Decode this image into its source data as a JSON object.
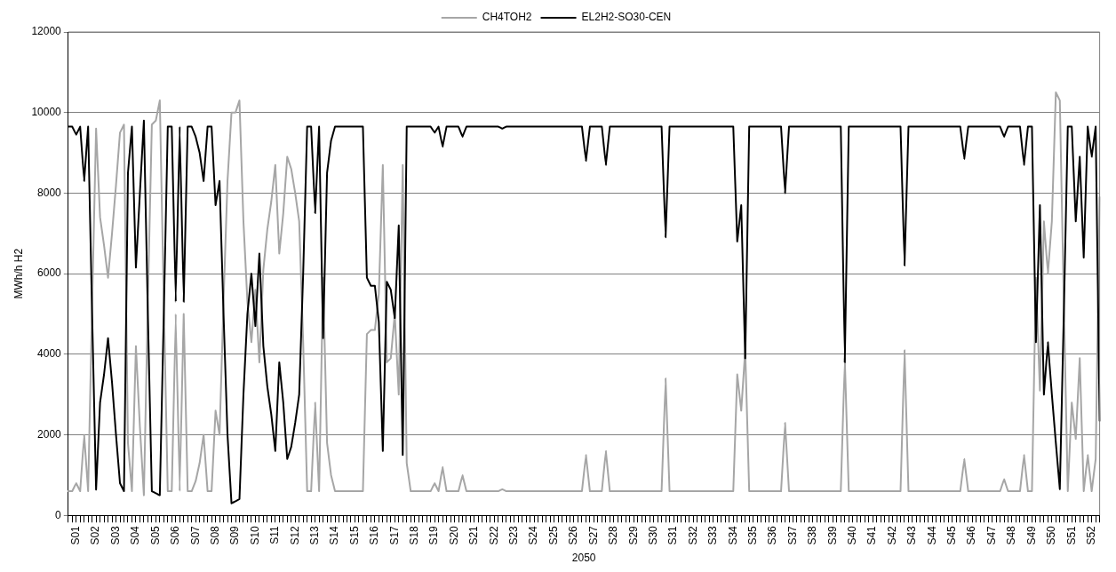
{
  "chart_data": {
    "type": "line",
    "xlabel": "2050",
    "ylabel": "MWh/h H2",
    "legend": "top",
    "grid": "y",
    "ylim": [
      0,
      12000
    ],
    "yticks": [
      0,
      2000,
      4000,
      6000,
      8000,
      10000,
      12000
    ],
    "categories": [
      null,
      null,
      "S01",
      null,
      null,
      null,
      null,
      "S02",
      null,
      null,
      null,
      null,
      "S03",
      null,
      null,
      null,
      null,
      "S04",
      null,
      null,
      null,
      null,
      "S05",
      null,
      null,
      null,
      null,
      "S06",
      null,
      null,
      null,
      null,
      "S07",
      null,
      null,
      null,
      null,
      "S08",
      null,
      null,
      null,
      null,
      "S09",
      null,
      null,
      null,
      null,
      "S10",
      null,
      null,
      null,
      null,
      "S11",
      null,
      null,
      null,
      null,
      "S12",
      null,
      null,
      null,
      null,
      "S13",
      null,
      null,
      null,
      null,
      "S14",
      null,
      null,
      null,
      null,
      "S15",
      null,
      null,
      null,
      null,
      "S16",
      null,
      null,
      null,
      null,
      "S17",
      null,
      null,
      null,
      null,
      "S18",
      null,
      null,
      null,
      null,
      "S19",
      null,
      null,
      null,
      null,
      "S20",
      null,
      null,
      null,
      null,
      "S21",
      null,
      null,
      null,
      null,
      "S22",
      null,
      null,
      null,
      null,
      "S23",
      null,
      null,
      null,
      null,
      "S24",
      null,
      null,
      null,
      null,
      "S25",
      null,
      null,
      null,
      null,
      "S26",
      null,
      null,
      null,
      null,
      "S27",
      null,
      null,
      null,
      null,
      "S28",
      null,
      null,
      null,
      null,
      "S29",
      null,
      null,
      null,
      null,
      "S30",
      null,
      null,
      null,
      null,
      "S31",
      null,
      null,
      null,
      null,
      "S32",
      null,
      null,
      null,
      null,
      "S33",
      null,
      null,
      null,
      null,
      "S34",
      null,
      null,
      null,
      null,
      "S35",
      null,
      null,
      null,
      null,
      "S36",
      null,
      null,
      null,
      null,
      "S37",
      null,
      null,
      null,
      null,
      "S38",
      null,
      null,
      null,
      null,
      "S39",
      null,
      null,
      null,
      null,
      "S40",
      null,
      null,
      null,
      null,
      "S41",
      null,
      null,
      null,
      null,
      "S42",
      null,
      null,
      null,
      null,
      "S43",
      null,
      null,
      null,
      null,
      "S44",
      null,
      null,
      null,
      null,
      "S45",
      null,
      null,
      null,
      null,
      "S46",
      null,
      null,
      null,
      null,
      "S47",
      null,
      null,
      null,
      null,
      "S48",
      null,
      null,
      null,
      null,
      "S49",
      null,
      null,
      null,
      null,
      "S50",
      null,
      null,
      null,
      null,
      "S51",
      null,
      null,
      null,
      null,
      "S52",
      null,
      null
    ],
    "series": [
      {
        "name": "CH4TOH2",
        "color": "#a6a6a6",
        "values": [
          600,
          600,
          800,
          600,
          2000,
          600,
          5200,
          9600,
          7400,
          6700,
          5900,
          7000,
          8200,
          9500,
          9700,
          1800,
          600,
          4200,
          2200,
          500,
          5300,
          9700,
          9800,
          10300,
          5300,
          600,
          600,
          5000,
          600,
          5000,
          600,
          600,
          850,
          1300,
          2000,
          600,
          600,
          2600,
          2000,
          5300,
          8300,
          10000,
          10000,
          10300,
          7300,
          5300,
          4300,
          5600,
          3800,
          6100,
          7100,
          7800,
          8700,
          6500,
          7500,
          8900,
          8600,
          8000,
          7300,
          4300,
          600,
          600,
          2800,
          600,
          5900,
          1800,
          1000,
          600,
          600,
          600,
          600,
          600,
          600,
          600,
          600,
          4500,
          4600,
          4600,
          5500,
          8700,
          3800,
          3900,
          5000,
          3000,
          8700,
          1300,
          600,
          600,
          600,
          600,
          600,
          600,
          800,
          600,
          1200,
          600,
          600,
          600,
          600,
          1000,
          600,
          600,
          600,
          600,
          600,
          600,
          600,
          600,
          600,
          650,
          600,
          600,
          600,
          600,
          600,
          600,
          600,
          600,
          600,
          600,
          600,
          600,
          600,
          600,
          600,
          600,
          600,
          600,
          600,
          600,
          1500,
          600,
          600,
          600,
          600,
          1600,
          600,
          600,
          600,
          600,
          600,
          600,
          600,
          600,
          600,
          600,
          600,
          600,
          600,
          600,
          3400,
          600,
          600,
          600,
          600,
          600,
          600,
          600,
          600,
          600,
          600,
          600,
          600,
          600,
          600,
          600,
          600,
          600,
          3500,
          2600,
          4100,
          600,
          600,
          600,
          600,
          600,
          600,
          600,
          600,
          600,
          2300,
          600,
          600,
          600,
          600,
          600,
          600,
          600,
          600,
          600,
          600,
          600,
          600,
          600,
          600,
          3900,
          600,
          600,
          600,
          600,
          600,
          600,
          600,
          600,
          600,
          600,
          600,
          600,
          600,
          600,
          4100,
          600,
          600,
          600,
          600,
          600,
          600,
          600,
          600,
          600,
          600,
          600,
          600,
          600,
          600,
          1400,
          600,
          600,
          600,
          600,
          600,
          600,
          600,
          600,
          600,
          900,
          600,
          600,
          600,
          600,
          1500,
          600,
          600,
          5900,
          3100,
          7300,
          6000,
          7300,
          10500,
          10300,
          5300,
          600,
          2800,
          1900,
          3900,
          600,
          1500,
          600,
          1400,
          7900
        ]
      },
      {
        "name": "EL2H2-SO30-CEN",
        "color": "#000000",
        "values": [
          9650,
          9650,
          9450,
          9650,
          8300,
          9650,
          5000,
          640,
          2800,
          3500,
          4400,
          3300,
          2000,
          800,
          600,
          8500,
          9650,
          6150,
          8000,
          9800,
          5000,
          600,
          550,
          500,
          5000,
          9650,
          9650,
          5300,
          9650,
          5300,
          9650,
          9650,
          9400,
          9000,
          8300,
          9650,
          9650,
          7700,
          8300,
          5000,
          2000,
          300,
          350,
          400,
          3000,
          5000,
          6000,
          4700,
          6500,
          4200,
          3200,
          2500,
          1600,
          3800,
          2800,
          1400,
          1700,
          2300,
          3000,
          6000,
          9650,
          9650,
          7500,
          9650,
          4400,
          8500,
          9300,
          9650,
          9650,
          9650,
          9650,
          9650,
          9650,
          9650,
          9650,
          5900,
          5700,
          5700,
          4800,
          1600,
          5800,
          5600,
          4900,
          7200,
          1500,
          9650,
          9650,
          9650,
          9650,
          9650,
          9650,
          9650,
          9500,
          9650,
          9150,
          9650,
          9650,
          9650,
          9650,
          9400,
          9650,
          9650,
          9650,
          9650,
          9650,
          9650,
          9650,
          9650,
          9650,
          9600,
          9650,
          9650,
          9650,
          9650,
          9650,
          9650,
          9650,
          9650,
          9650,
          9650,
          9650,
          9650,
          9650,
          9650,
          9650,
          9650,
          9650,
          9650,
          9650,
          9650,
          8800,
          9650,
          9650,
          9650,
          9650,
          8700,
          9650,
          9650,
          9650,
          9650,
          9650,
          9650,
          9650,
          9650,
          9650,
          9650,
          9650,
          9650,
          9650,
          9650,
          6900,
          9650,
          9650,
          9650,
          9650,
          9650,
          9650,
          9650,
          9650,
          9650,
          9650,
          9650,
          9650,
          9650,
          9650,
          9650,
          9650,
          9650,
          6800,
          7700,
          3900,
          9650,
          9650,
          9650,
          9650,
          9650,
          9650,
          9650,
          9650,
          9650,
          8000,
          9650,
          9650,
          9650,
          9650,
          9650,
          9650,
          9650,
          9650,
          9650,
          9650,
          9650,
          9650,
          9650,
          9650,
          3800,
          9650,
          9650,
          9650,
          9650,
          9650,
          9650,
          9650,
          9650,
          9650,
          9650,
          9650,
          9650,
          9650,
          9650,
          6200,
          9650,
          9650,
          9650,
          9650,
          9650,
          9650,
          9650,
          9650,
          9650,
          9650,
          9650,
          9650,
          9650,
          9650,
          8850,
          9650,
          9650,
          9650,
          9650,
          9650,
          9650,
          9650,
          9650,
          9650,
          9400,
          9650,
          9650,
          9650,
          9650,
          8700,
          9650,
          9650,
          4300,
          7700,
          3000,
          4300,
          3000,
          1800,
          650,
          5000,
          9650,
          9650,
          7300,
          8900,
          6400,
          9650,
          8900,
          9650,
          2350
        ]
      }
    ]
  }
}
